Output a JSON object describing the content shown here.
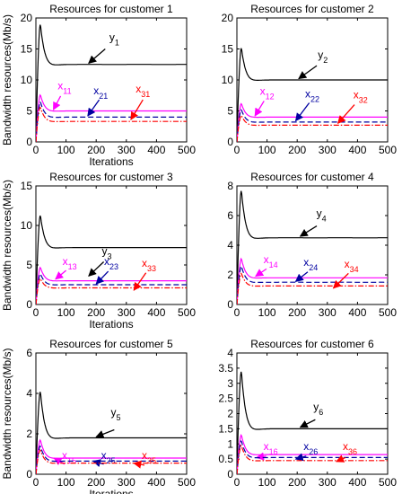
{
  "chart_data": [
    {
      "type": "line",
      "title": "Resources for customer 1",
      "xlabel": "Iterations",
      "ylabel": "Bandwidth resources(Mb/s)",
      "xlim": [
        0,
        500
      ],
      "ylim": [
        0,
        20
      ],
      "xticks": [
        "0",
        "100",
        "200",
        "300",
        "400",
        "500"
      ],
      "yticks": [
        "0",
        "5",
        "10",
        "15",
        "20"
      ],
      "series": [
        {
          "label": {
            "main": "y",
            "sub": "1"
          },
          "peak": [
            15,
            19.0
          ],
          "steady": 12.5,
          "color": "#000000",
          "style": "solid",
          "annotation": {
            "text_at": [
              260,
              16.3
            ],
            "arrow_from": [
              230,
              15.0
            ],
            "arrow_to": [
              175,
              12.7
            ]
          }
        },
        {
          "label": {
            "main": "x",
            "sub": "11"
          },
          "peak": [
            15,
            7.6
          ],
          "steady": 5.0,
          "color": "#ff00ff",
          "style": "solid",
          "annotation": {
            "text_at": [
              95,
              8.5
            ],
            "arrow_from": [
              82,
              7.4
            ],
            "arrow_to": [
              58,
              5.2
            ]
          }
        },
        {
          "label": {
            "main": "x",
            "sub": "21"
          },
          "peak": [
            15,
            6.5
          ],
          "steady": 4.0,
          "color": "#0000a0",
          "style": "dashed",
          "annotation": {
            "text_at": [
              215,
              7.7
            ],
            "arrow_from": [
              210,
              6.8
            ],
            "arrow_to": [
              172,
              4.2
            ]
          }
        },
        {
          "label": {
            "main": "x",
            "sub": "31"
          },
          "peak": [
            15,
            5.6
          ],
          "steady": 3.3,
          "color": "#ff0000",
          "style": "dashdot",
          "annotation": {
            "text_at": [
              355,
              8.0
            ],
            "arrow_from": [
              355,
              6.8
            ],
            "arrow_to": [
              315,
              3.6
            ]
          }
        }
      ]
    },
    {
      "type": "line",
      "title": "Resources for customer 2",
      "xlabel": "",
      "ylabel": "",
      "xlim": [
        0,
        500
      ],
      "ylim": [
        0,
        20
      ],
      "xticks": [
        "0",
        "100",
        "200",
        "300",
        "400",
        "500"
      ],
      "yticks": [
        "0",
        "5",
        "10",
        "15",
        "20"
      ],
      "series": [
        {
          "label": {
            "main": "y",
            "sub": "2"
          },
          "peak": [
            15,
            15.2
          ],
          "steady": 10.0,
          "color": "#000000",
          "style": "solid",
          "annotation": {
            "text_at": [
              285,
              13.5
            ],
            "arrow_from": [
              265,
              12.3
            ],
            "arrow_to": [
              205,
              10.2
            ]
          }
        },
        {
          "label": {
            "main": "x",
            "sub": "12"
          },
          "peak": [
            15,
            6.2
          ],
          "steady": 4.0,
          "color": "#ff00ff",
          "style": "solid",
          "annotation": {
            "text_at": [
              100,
              7.6
            ],
            "arrow_from": [
              90,
              6.6
            ],
            "arrow_to": [
              60,
              4.2
            ]
          }
        },
        {
          "label": {
            "main": "x",
            "sub": "22"
          },
          "peak": [
            15,
            5.2
          ],
          "steady": 3.2,
          "color": "#0000a0",
          "style": "dashed",
          "annotation": {
            "text_at": [
              250,
              7.2
            ],
            "arrow_from": [
              240,
              6.3
            ],
            "arrow_to": [
              195,
              3.4
            ]
          }
        },
        {
          "label": {
            "main": "x",
            "sub": "32"
          },
          "peak": [
            15,
            4.3
          ],
          "steady": 2.7,
          "color": "#ff0000",
          "style": "dashdot",
          "annotation": {
            "text_at": [
              410,
              7.0
            ],
            "arrow_from": [
              390,
              6.0
            ],
            "arrow_to": [
              335,
              3.0
            ]
          }
        }
      ]
    },
    {
      "type": "line",
      "title": "Resources for customer 3",
      "xlabel": "Iterations",
      "ylabel": "Bandwidth resources(Mb/s)",
      "xlim": [
        0,
        500
      ],
      "ylim": [
        0,
        15
      ],
      "xticks": [
        "0",
        "100",
        "200",
        "300",
        "400",
        "500"
      ],
      "yticks": [
        "0",
        "5",
        "10",
        "15"
      ],
      "series": [
        {
          "label": {
            "main": "y",
            "sub": "3"
          },
          "peak": [
            15,
            11.3
          ],
          "steady": 7.2,
          "color": "#000000",
          "style": "solid",
          "annotation": {
            "text_at": [
              235,
              6.3
            ],
            "arrow_from": [
              225,
              5.4
            ],
            "arrow_to": [
              175,
              3.6
            ]
          }
        },
        {
          "label": {
            "main": "x",
            "sub": "13"
          },
          "peak": [
            15,
            4.7
          ],
          "steady": 3.0,
          "color": "#ff00ff",
          "style": "solid",
          "annotation": {
            "text_at": [
              112,
              5.0
            ],
            "arrow_from": [
              100,
              4.3
            ],
            "arrow_to": [
              65,
              3.2
            ]
          }
        },
        {
          "label": {
            "main": "x",
            "sub": "23"
          },
          "peak": [
            15,
            3.9
          ],
          "steady": 2.5,
          "color": "#0000a0",
          "style": "dashed",
          "annotation": {
            "text_at": [
              250,
              5.0
            ],
            "arrow_from": [
              240,
              4.2
            ],
            "arrow_to": [
              200,
              2.6
            ]
          }
        },
        {
          "label": {
            "main": "x",
            "sub": "33"
          },
          "peak": [
            15,
            3.3
          ],
          "steady": 2.1,
          "color": "#ff0000",
          "style": "dashdot",
          "annotation": {
            "text_at": [
              375,
              4.8
            ],
            "arrow_from": [
              365,
              4.0
            ],
            "arrow_to": [
              325,
              1.8
            ]
          }
        }
      ]
    },
    {
      "type": "line",
      "title": "Resources for customer 4",
      "xlabel": "",
      "ylabel": "",
      "xlim": [
        0,
        500
      ],
      "ylim": [
        0,
        8
      ],
      "xticks": [
        "0",
        "100",
        "200",
        "300",
        "400",
        "500"
      ],
      "yticks": [
        "0",
        "2",
        "4",
        "6",
        "8"
      ],
      "series": [
        {
          "label": {
            "main": "y",
            "sub": "4"
          },
          "peak": [
            15,
            7.7
          ],
          "steady": 4.5,
          "color": "#000000",
          "style": "solid",
          "annotation": {
            "text_at": [
              280,
              5.9
            ],
            "arrow_from": [
              265,
              5.3
            ],
            "arrow_to": [
              210,
              4.6
            ]
          }
        },
        {
          "label": {
            "main": "x",
            "sub": "14"
          },
          "peak": [
            15,
            3.1
          ],
          "steady": 1.8,
          "color": "#ff00ff",
          "style": "solid",
          "annotation": {
            "text_at": [
              112,
              2.8
            ],
            "arrow_from": [
              98,
              2.4
            ],
            "arrow_to": [
              62,
              1.9
            ]
          }
        },
        {
          "label": {
            "main": "x",
            "sub": "24"
          },
          "peak": [
            15,
            2.6
          ],
          "steady": 1.5,
          "color": "#0000a0",
          "style": "dashed",
          "annotation": {
            "text_at": [
              245,
              2.6
            ],
            "arrow_from": [
              235,
              2.2
            ],
            "arrow_to": [
              195,
              1.55
            ]
          }
        },
        {
          "label": {
            "main": "x",
            "sub": "34"
          },
          "peak": [
            15,
            2.1
          ],
          "steady": 1.25,
          "color": "#ff0000",
          "style": "dashdot",
          "annotation": {
            "text_at": [
              380,
              2.5
            ],
            "arrow_from": [
              370,
              2.1
            ],
            "arrow_to": [
              320,
              1.1
            ]
          }
        }
      ]
    },
    {
      "type": "line",
      "title": "Resources for customer 5",
      "xlabel": "Iterations",
      "ylabel": "Bandwidth resources(Mb/s)",
      "xlim": [
        0,
        500
      ],
      "ylim": [
        0,
        6
      ],
      "xticks": [
        "0",
        "100",
        "200",
        "300",
        "400",
        "500"
      ],
      "yticks": [
        "0",
        "2",
        "4",
        "6"
      ],
      "series": [
        {
          "label": {
            "main": "y",
            "sub": "5"
          },
          "peak": [
            15,
            4.1
          ],
          "steady": 1.8,
          "color": "#000000",
          "style": "solid",
          "annotation": {
            "text_at": [
              265,
              2.9
            ],
            "arrow_from": [
              260,
              2.2
            ],
            "arrow_to": [
              200,
              1.85
            ]
          }
        },
        {
          "label": {
            "main": "x",
            "sub": "15"
          },
          "peak": [
            15,
            1.7
          ],
          "steady": 0.8,
          "color": "#ff00ff",
          "style": "solid",
          "annotation": {
            "text_at": [
              110,
              0.75
            ],
            "arrow_from": [
              95,
              0.5
            ],
            "arrow_to": [
              60,
              0.8
            ]
          }
        },
        {
          "label": {
            "main": "x",
            "sub": "25"
          },
          "peak": [
            15,
            1.4
          ],
          "steady": 0.65,
          "color": "#0000a0",
          "style": "dashed",
          "annotation": {
            "text_at": [
              240,
              0.75
            ],
            "arrow_from": [
              225,
              0.5
            ],
            "arrow_to": [
              190,
              0.65
            ]
          }
        },
        {
          "label": {
            "main": "x",
            "sub": "35"
          },
          "peak": [
            15,
            1.2
          ],
          "steady": 0.55,
          "color": "#ff0000",
          "style": "dashdot",
          "annotation": {
            "text_at": [
              375,
              0.75
            ],
            "arrow_from": [
              360,
              0.45
            ],
            "arrow_to": [
              325,
              0.55
            ]
          }
        }
      ]
    },
    {
      "type": "line",
      "title": "Resources for customer 6",
      "xlabel": "",
      "ylabel": "",
      "xlim": [
        0,
        500
      ],
      "ylim": [
        0,
        4
      ],
      "xticks": [
        "0",
        "100",
        "200",
        "300",
        "400",
        "500"
      ],
      "yticks": [
        "0",
        "0.5",
        "1",
        "1.5",
        "2",
        "2.5",
        "3",
        "3.5",
        "4"
      ],
      "series": [
        {
          "label": {
            "main": "y",
            "sub": "6"
          },
          "peak": [
            15,
            3.4
          ],
          "steady": 1.5,
          "color": "#000000",
          "style": "solid",
          "annotation": {
            "text_at": [
              270,
              2.1
            ],
            "arrow_from": [
              260,
              1.8
            ],
            "arrow_to": [
              210,
              1.55
            ]
          }
        },
        {
          "label": {
            "main": "x",
            "sub": "16"
          },
          "peak": [
            15,
            1.3
          ],
          "steady": 0.65,
          "color": "#ff00ff",
          "style": "solid",
          "annotation": {
            "text_at": [
              112,
              0.8
            ],
            "arrow_from": [
              97,
              0.6
            ],
            "arrow_to": [
              65,
              0.55
            ]
          }
        },
        {
          "label": {
            "main": "x",
            "sub": "26"
          },
          "peak": [
            15,
            1.1
          ],
          "steady": 0.55,
          "color": "#0000a0",
          "style": "dashed",
          "annotation": {
            "text_at": [
              245,
              0.8
            ],
            "arrow_from": [
              230,
              0.6
            ],
            "arrow_to": [
              195,
              0.5
            ]
          }
        },
        {
          "label": {
            "main": "x",
            "sub": "36"
          },
          "peak": [
            15,
            0.95
          ],
          "steady": 0.45,
          "color": "#ff0000",
          "style": "dashdot",
          "annotation": {
            "text_at": [
              375,
              0.8
            ],
            "arrow_from": [
              360,
              0.55
            ],
            "arrow_to": [
              330,
              0.42
            ]
          }
        }
      ]
    }
  ]
}
